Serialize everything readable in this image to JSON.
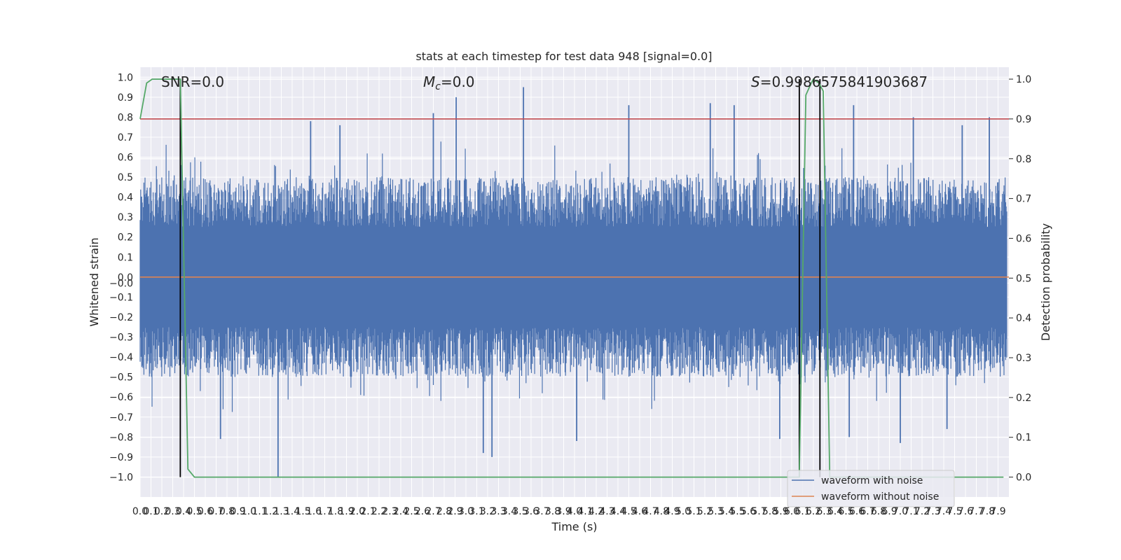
{
  "chart_data": {
    "type": "line",
    "title": "stats at each timestep for test data 948 [signal=0.0]",
    "xlabel": "Time (s)",
    "ylabel": "Whitened strain",
    "y2label": "Detection probability",
    "xlim": [
      0.0,
      8.0
    ],
    "ylim": [
      -1.1,
      1.05
    ],
    "y2lim": [
      -0.05,
      1.03
    ],
    "grid": true,
    "legend_position": "lower-right",
    "x_ticks": [
      "0.0",
      "0.1",
      "0.2",
      "0.3",
      "0.4",
      "0.5",
      "0.6",
      "0.7",
      "0.8",
      "0.9",
      "1.0",
      "1.1",
      "1.2",
      "1.3",
      "1.4",
      "1.5",
      "1.6",
      "1.7",
      "1.8",
      "1.9",
      "2.0",
      "2.1",
      "2.2",
      "2.3",
      "2.4",
      "2.5",
      "2.6",
      "2.7",
      "2.8",
      "2.9",
      "3.0",
      "3.1",
      "3.2",
      "3.3",
      "3.4",
      "3.5",
      "3.6",
      "3.7",
      "3.8",
      "3.9",
      "4.0",
      "4.1",
      "4.2",
      "4.3",
      "4.4",
      "4.5",
      "4.6",
      "4.7",
      "4.8",
      "4.9",
      "5.0",
      "5.1",
      "5.2",
      "5.3",
      "5.4",
      "5.5",
      "5.6",
      "5.7",
      "5.8",
      "5.9",
      "6.0",
      "6.1",
      "6.2",
      "6.3",
      "6.4",
      "6.5",
      "6.6",
      "6.7",
      "6.8",
      "6.9",
      "7.0",
      "7.1",
      "7.2",
      "7.3",
      "7.4",
      "7.5",
      "7.6",
      "7.7",
      "7.8",
      "7.9"
    ],
    "y_ticks": [
      "1.0",
      "0.9",
      "0.8",
      "0.7",
      "0.6",
      "0.5",
      "0.4",
      "0.3",
      "0.2",
      "0.1",
      "0.0",
      "−0.0",
      "−0.1",
      "−0.2",
      "−0.3",
      "−0.4",
      "−0.5",
      "−0.6",
      "−0.7",
      "−0.8",
      "−0.9",
      "−1.0"
    ],
    "y2_ticks": [
      "1.0",
      "0.9",
      "0.8",
      "0.7",
      "0.6",
      "0.5",
      "0.4",
      "0.3",
      "0.2",
      "0.1",
      "0.0"
    ],
    "annotations": {
      "snr": "SNR=0.0",
      "mc": "M_c=0.0",
      "mc_symbol": "M",
      "mc_subscript": "c",
      "mc_value": "=0.0",
      "s": "S=0.9986575841903687",
      "s_symbol": "S",
      "s_value": "=0.9986575841903687"
    },
    "threshold": 0.9,
    "vertical_markers_s": [
      0.37,
      6.07,
      6.26
    ],
    "series": [
      {
        "name": "waveform with noise",
        "color": "#4c72b0",
        "description": "noise envelope approx ±0.4 with spikes",
        "spikes": [
          {
            "x": 1.57,
            "y": 0.78
          },
          {
            "x": 1.84,
            "y": 0.76
          },
          {
            "x": 2.7,
            "y": 0.82
          },
          {
            "x": 2.91,
            "y": 0.9
          },
          {
            "x": 3.53,
            "y": 0.95
          },
          {
            "x": 4.5,
            "y": 0.86
          },
          {
            "x": 5.25,
            "y": 0.87
          },
          {
            "x": 5.47,
            "y": 0.86
          },
          {
            "x": 6.57,
            "y": 0.86
          },
          {
            "x": 7.12,
            "y": 0.8
          },
          {
            "x": 7.57,
            "y": 0.76
          },
          {
            "x": 7.82,
            "y": 0.8
          },
          {
            "x": 1.27,
            "y": -1.0
          },
          {
            "x": 3.16,
            "y": -0.88
          },
          {
            "x": 3.24,
            "y": -0.9
          },
          {
            "x": 0.74,
            "y": -0.81
          },
          {
            "x": 4.02,
            "y": -0.82
          },
          {
            "x": 5.89,
            "y": -0.81
          },
          {
            "x": 7.0,
            "y": -0.83
          },
          {
            "x": 6.53,
            "y": -0.8
          },
          {
            "x": 7.43,
            "y": -0.76
          }
        ]
      },
      {
        "name": "waveform without noise",
        "color": "#dd8452",
        "y": 0.0
      },
      {
        "name": "detection probability",
        "color": "#55a868",
        "x": [
          0.0,
          0.06,
          0.11,
          0.2,
          0.3,
          0.37,
          0.44,
          0.5,
          1.0,
          2.0,
          3.0,
          4.0,
          5.0,
          6.0,
          6.07,
          6.13,
          6.18,
          6.2,
          6.25,
          6.29,
          6.35,
          6.4,
          7.0,
          7.95
        ],
        "y": [
          0.9,
          0.99,
          1.0,
          1.0,
          1.0,
          1.0,
          0.02,
          0.0,
          0.0,
          0.0,
          0.0,
          0.0,
          0.0,
          0.0,
          0.0,
          0.96,
          0.99,
          1.0,
          0.99,
          0.97,
          0.0,
          0.0,
          0.0,
          0.0
        ]
      },
      {
        "name": "threshold",
        "color": "#c44e52"
      }
    ]
  },
  "legend": {
    "items": [
      {
        "label": "waveform with noise",
        "color": "#4c72b0"
      },
      {
        "label": "waveform without noise",
        "color": "#dd8452"
      }
    ]
  }
}
